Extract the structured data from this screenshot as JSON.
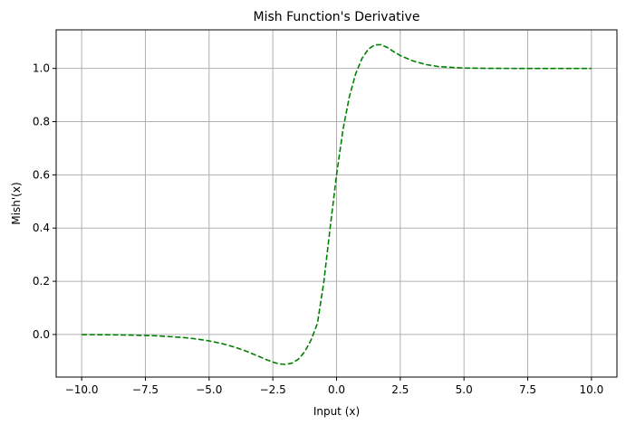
{
  "chart_data": {
    "type": "line",
    "title": "Mish Function's Derivative",
    "xlabel": "Input (x)",
    "ylabel": "Mish'(x)",
    "xlim": [
      -11.0,
      11.0
    ],
    "ylim": [
      -0.16,
      1.145
    ],
    "grid": true,
    "x_ticks": [
      -10.0,
      -7.5,
      -5.0,
      -2.5,
      0.0,
      2.5,
      5.0,
      7.5,
      10.0
    ],
    "x_tick_labels": [
      "−10.0",
      "−7.5",
      "−5.0",
      "−2.5",
      "0.0",
      "2.5",
      "5.0",
      "7.5",
      "10.0"
    ],
    "y_ticks": [
      0.0,
      0.2,
      0.4,
      0.6,
      0.8,
      1.0
    ],
    "y_tick_labels": [
      "0.0",
      "0.2",
      "0.4",
      "0.6",
      "0.8",
      "1.0"
    ],
    "series": [
      {
        "color": "#008000",
        "line_style": "dashed",
        "x": [
          -10,
          -9,
          -8,
          -7,
          -6,
          -5.5,
          -5,
          -4.5,
          -4,
          -3.5,
          -3,
          -2.75,
          -2.5,
          -2.25,
          -2,
          -1.75,
          -1.5,
          -1.25,
          -1,
          -0.75,
          -0.5,
          -0.25,
          0,
          0.25,
          0.5,
          0.75,
          1,
          1.25,
          1.5,
          1.75,
          2,
          2.25,
          2.5,
          3,
          3.5,
          4,
          5,
          6,
          7,
          8,
          9,
          10
        ],
        "y": [
          -0.0004,
          -0.001,
          -0.0023,
          -0.0052,
          -0.0115,
          -0.0167,
          -0.024,
          -0.034,
          -0.0474,
          -0.0644,
          -0.0844,
          -0.0946,
          -0.1037,
          -0.1104,
          -0.1125,
          -0.1078,
          -0.0931,
          -0.0652,
          -0.0207,
          0.0418,
          0.1969,
          0.4024,
          0.6,
          0.7685,
          0.8928,
          0.9797,
          1.0377,
          1.0728,
          1.0886,
          1.0891,
          1.0782,
          1.0625,
          1.0484,
          1.028,
          1.0147,
          1.0069,
          1.0014,
          1.0003,
          1.0001,
          1.0,
          1.0,
          1.0
        ]
      }
    ]
  }
}
